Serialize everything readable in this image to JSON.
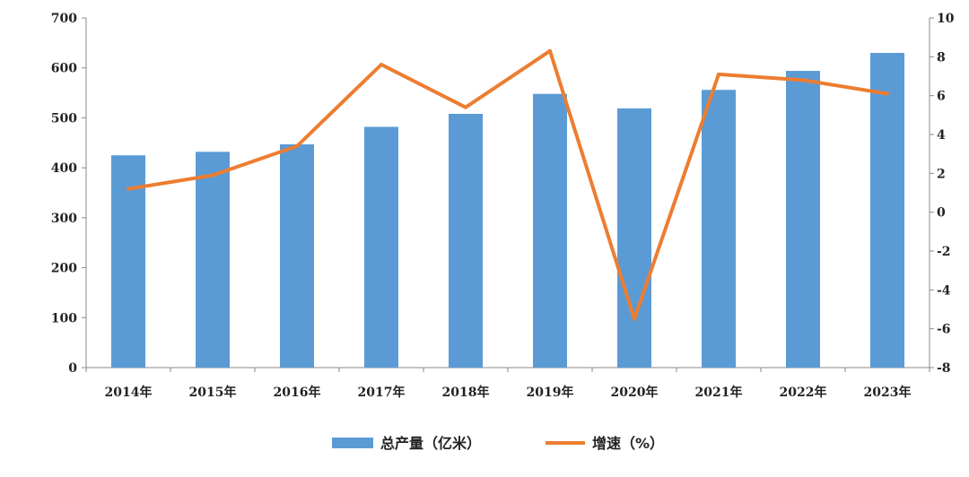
{
  "chart_data": {
    "type": "bar+line",
    "categories": [
      "2014年",
      "2015年",
      "2016年",
      "2017年",
      "2018年",
      "2019年",
      "2020年",
      "2021年",
      "2022年",
      "2023年"
    ],
    "series": [
      {
        "name": "总产量（亿米）",
        "type": "bar",
        "axis": "left",
        "color": "#5B9BD5",
        "values": [
          425,
          432,
          447,
          482,
          508,
          548,
          519,
          556,
          594,
          630
        ]
      },
      {
        "name": "增速（%）",
        "type": "line",
        "axis": "right",
        "color": "#ED7D31",
        "values": [
          1.2,
          1.9,
          3.4,
          7.6,
          5.4,
          8.3,
          -5.5,
          7.1,
          6.8,
          6.1
        ]
      }
    ],
    "y_left": {
      "min": 0,
      "max": 700,
      "ticks": [
        0,
        100,
        200,
        300,
        400,
        500,
        600,
        700
      ]
    },
    "y_right": {
      "min": -8,
      "max": 10,
      "ticks": [
        -8,
        -6,
        -4,
        -2,
        0,
        2,
        4,
        6,
        8,
        10
      ]
    },
    "grid": false,
    "legend_position": "bottom",
    "title": "",
    "xlabel": "",
    "ylabel": ""
  }
}
